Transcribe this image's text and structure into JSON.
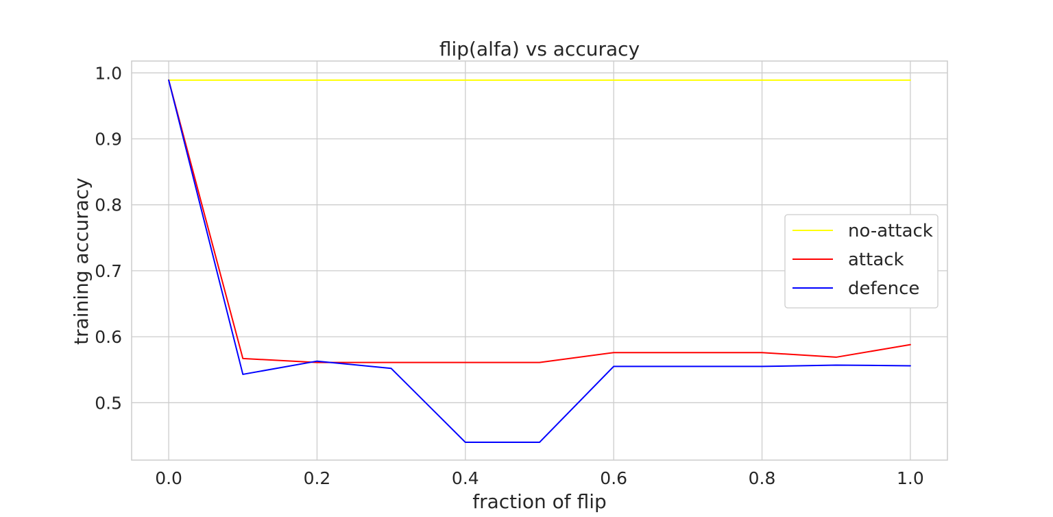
{
  "chart_data": {
    "type": "line",
    "title": "flip(alfa) vs accuracy",
    "xlabel": "fraction of flip",
    "ylabel": "training accuracy",
    "xlim": [
      -0.05,
      1.05
    ],
    "ylim": [
      0.413,
      1.018
    ],
    "xticks": [
      0.0,
      0.2,
      0.4,
      0.6,
      0.8,
      1.0
    ],
    "yticks": [
      0.5,
      0.6,
      0.7,
      0.8,
      0.9,
      1.0
    ],
    "xtick_labels": [
      "0.0",
      "0.2",
      "0.4",
      "0.6",
      "0.8",
      "1.0"
    ],
    "ytick_labels": [
      "0.5",
      "0.6",
      "0.7",
      "0.8",
      "0.9",
      "1.0"
    ],
    "grid": true,
    "legend_position": "center-right",
    "x": [
      0.0,
      0.1,
      0.2,
      0.3,
      0.4,
      0.5,
      0.6,
      0.7,
      0.8,
      0.9,
      1.0
    ],
    "series": [
      {
        "name": "no-attack",
        "color": "#ffff00",
        "values": [
          0.989,
          0.989,
          0.989,
          0.989,
          0.989,
          0.989,
          0.989,
          0.989,
          0.989,
          0.989,
          0.989
        ]
      },
      {
        "name": "attack",
        "color": "#ff0000",
        "values": [
          0.989,
          0.567,
          0.561,
          0.561,
          0.561,
          0.561,
          0.576,
          0.576,
          0.576,
          0.569,
          0.588
        ]
      },
      {
        "name": "defence",
        "color": "#0000ff",
        "values": [
          0.989,
          0.543,
          0.563,
          0.552,
          0.44,
          0.44,
          0.555,
          0.555,
          0.555,
          0.557,
          0.556
        ]
      }
    ]
  }
}
